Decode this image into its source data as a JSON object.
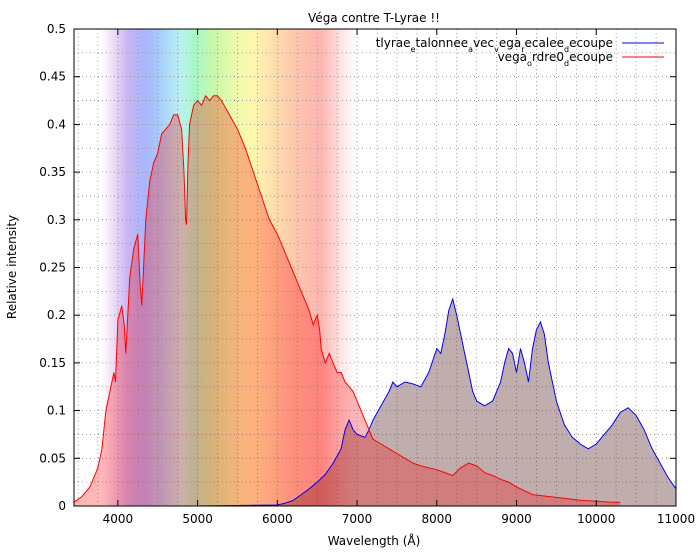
{
  "chart_data": {
    "type": "area",
    "title": "Véga contre T-Lyrae !!",
    "xlabel": "Wavelength (Å)",
    "ylabel": "Relative intensity",
    "xlim": [
      3450,
      11000
    ],
    "ylim": [
      0,
      0.5
    ],
    "x_ticks": [
      4000,
      5000,
      6000,
      7000,
      8000,
      9000,
      10000,
      11000
    ],
    "x_tick_labels": [
      "4000",
      "5000",
      "6000",
      "7000",
      "8000",
      "9000",
      "10000",
      "11000"
    ],
    "y_ticks": [
      0,
      0.05,
      0.1,
      0.15,
      0.2,
      0.25,
      0.3,
      0.35,
      0.4,
      0.45,
      0.5
    ],
    "y_tick_labels": [
      "0",
      "0.05",
      "0.1",
      "0.15",
      "0.2",
      "0.25",
      "0.3",
      "0.35",
      "0.4",
      "0.45",
      "0.5"
    ],
    "grid": true,
    "legend_position": "top-right",
    "background": "visible-spectrum rainbow band between about 3800 and 7000 Å",
    "series": [
      {
        "name": "tlyrae_etalonnee_avec_vega_recalee_decoupe",
        "legend_parts": [
          {
            "t": "tlyrae",
            "s": false
          },
          {
            "t": "e",
            "s": true
          },
          {
            "t": "talonnee",
            "s": false
          },
          {
            "t": "a",
            "s": true
          },
          {
            "t": "vec",
            "s": false
          },
          {
            "t": "v",
            "s": true
          },
          {
            "t": "ega",
            "s": false
          },
          {
            "t": "r",
            "s": true
          },
          {
            "t": "ecalee",
            "s": false
          },
          {
            "t": "d",
            "s": true
          },
          {
            "t": "ecoupe",
            "s": false
          }
        ],
        "color": "#0000ff",
        "fill": "rgba(90,40,40,0.38)",
        "x": [
          3450,
          5000,
          6000,
          6100,
          6200,
          6300,
          6400,
          6500,
          6600,
          6700,
          6800,
          6850,
          6900,
          6950,
          7000,
          7100,
          7150,
          7200,
          7300,
          7400,
          7450,
          7500,
          7600,
          7700,
          7800,
          7900,
          8000,
          8050,
          8100,
          8150,
          8200,
          8250,
          8300,
          8350,
          8400,
          8450,
          8500,
          8600,
          8700,
          8800,
          8850,
          8900,
          8950,
          9000,
          9050,
          9100,
          9150,
          9200,
          9250,
          9300,
          9350,
          9400,
          9500,
          9600,
          9700,
          9800,
          9900,
          10000,
          10100,
          10200,
          10300,
          10400,
          10500,
          10600,
          10700,
          10800,
          10900,
          11000
        ],
        "y": [
          0.0,
          0.0,
          0.001,
          0.003,
          0.006,
          0.012,
          0.018,
          0.025,
          0.033,
          0.045,
          0.06,
          0.08,
          0.09,
          0.08,
          0.075,
          0.072,
          0.08,
          0.09,
          0.105,
          0.12,
          0.13,
          0.125,
          0.13,
          0.128,
          0.125,
          0.14,
          0.165,
          0.16,
          0.18,
          0.205,
          0.217,
          0.2,
          0.18,
          0.16,
          0.14,
          0.12,
          0.11,
          0.105,
          0.11,
          0.13,
          0.15,
          0.165,
          0.16,
          0.14,
          0.165,
          0.15,
          0.13,
          0.165,
          0.185,
          0.193,
          0.18,
          0.15,
          0.11,
          0.085,
          0.072,
          0.065,
          0.06,
          0.065,
          0.075,
          0.085,
          0.098,
          0.103,
          0.095,
          0.08,
          0.06,
          0.045,
          0.03,
          0.018
        ]
      },
      {
        "name": "vega_ordre0_decoupe",
        "legend_parts": [
          {
            "t": "vega",
            "s": false
          },
          {
            "t": "o",
            "s": true
          },
          {
            "t": "rdre0",
            "s": false
          },
          {
            "t": "d",
            "s": true
          },
          {
            "t": "ecoupe",
            "s": false
          }
        ],
        "color": "#ff0000",
        "fill": "rgba(255,0,0,0.28)",
        "x": [
          3450,
          3550,
          3650,
          3750,
          3800,
          3850,
          3900,
          3950,
          3970,
          4000,
          4050,
          4080,
          4100,
          4150,
          4200,
          4250,
          4280,
          4300,
          4350,
          4400,
          4450,
          4500,
          4550,
          4600,
          4650,
          4700,
          4750,
          4800,
          4830,
          4850,
          4861,
          4880,
          4900,
          4950,
          5000,
          5050,
          5100,
          5150,
          5200,
          5250,
          5300,
          5400,
          5500,
          5600,
          5700,
          5800,
          5900,
          6000,
          6100,
          6200,
          6300,
          6400,
          6450,
          6500,
          6530,
          6550,
          6600,
          6650,
          6700,
          6750,
          6800,
          6850,
          6900,
          6950,
          7000,
          7050,
          7100,
          7150,
          7200,
          7300,
          7400,
          7500,
          7600,
          7700,
          7800,
          7900,
          8000,
          8100,
          8200,
          8300,
          8400,
          8500,
          8600,
          8700,
          8800,
          8900,
          9000,
          9200,
          9400,
          9600,
          9800,
          10000,
          10200,
          10300
        ],
        "y": [
          0.004,
          0.01,
          0.02,
          0.04,
          0.06,
          0.1,
          0.12,
          0.14,
          0.13,
          0.195,
          0.21,
          0.19,
          0.16,
          0.24,
          0.27,
          0.285,
          0.23,
          0.21,
          0.3,
          0.34,
          0.36,
          0.37,
          0.39,
          0.395,
          0.4,
          0.41,
          0.41,
          0.395,
          0.35,
          0.3,
          0.295,
          0.36,
          0.4,
          0.42,
          0.425,
          0.42,
          0.43,
          0.425,
          0.43,
          0.43,
          0.425,
          0.41,
          0.395,
          0.375,
          0.35,
          0.325,
          0.3,
          0.285,
          0.265,
          0.245,
          0.225,
          0.205,
          0.19,
          0.2,
          0.185,
          0.165,
          0.15,
          0.16,
          0.15,
          0.14,
          0.14,
          0.13,
          0.125,
          0.12,
          0.11,
          0.1,
          0.09,
          0.08,
          0.07,
          0.065,
          0.06,
          0.055,
          0.05,
          0.045,
          0.042,
          0.04,
          0.038,
          0.035,
          0.032,
          0.04,
          0.045,
          0.042,
          0.035,
          0.032,
          0.028,
          0.025,
          0.02,
          0.012,
          0.01,
          0.008,
          0.006,
          0.005,
          0.004,
          0.004
        ]
      }
    ]
  }
}
